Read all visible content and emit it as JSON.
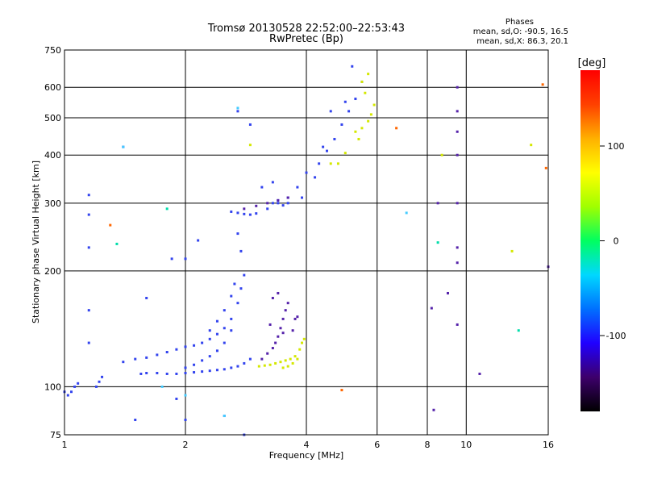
{
  "chart_data": {
    "type": "scatter",
    "title": "Tromsø 20130528 22:52:00–22:53:43",
    "subtitle": "RwPretec (Bp)",
    "xlabel": "Frequency [MHz]",
    "ylabel": "Stationary phase Virtual Height [km]",
    "x_scale": "log",
    "y_scale": "log",
    "xlim": [
      1,
      16
    ],
    "ylim": [
      75,
      750
    ],
    "x_ticks": [
      1,
      2,
      4,
      6,
      8,
      10,
      16
    ],
    "y_ticks": [
      75,
      100,
      200,
      300,
      400,
      500,
      600,
      750
    ],
    "grid": true,
    "phase_stats": {
      "header": "Phases",
      "line_o": "mean, sd,O: -90.5, 16.5",
      "line_x": "mean, sd,X: 86.3, 20.1"
    },
    "colorbar": {
      "label": "[deg]",
      "range": [
        -180,
        180
      ],
      "ticks": [
        100,
        0,
        -100
      ],
      "colors": [
        "#000000",
        "#3d006b",
        "#2000ff",
        "#0070ff",
        "#00d8ff",
        "#00ff60",
        "#a0ff00",
        "#ffff00",
        "#ffb000",
        "#ff4000",
        "#ff0000"
      ]
    },
    "series": [
      {
        "color": "#3344ee",
        "points": [
          [
            1.0,
            97
          ],
          [
            1.02,
            95
          ],
          [
            1.04,
            97
          ],
          [
            1.06,
            100
          ],
          [
            1.08,
            102
          ],
          [
            1.2,
            100
          ],
          [
            1.22,
            103
          ],
          [
            1.24,
            106
          ],
          [
            1.55,
            108
          ],
          [
            1.6,
            108.5
          ],
          [
            1.7,
            108.5
          ],
          [
            1.8,
            108
          ],
          [
            1.9,
            108
          ],
          [
            2.0,
            108.5
          ],
          [
            2.1,
            109
          ],
          [
            2.2,
            109.5
          ],
          [
            2.3,
            110
          ],
          [
            2.4,
            110.5
          ],
          [
            2.5,
            111
          ],
          [
            2.6,
            112
          ],
          [
            2.7,
            113
          ],
          [
            2.8,
            115
          ],
          [
            2.9,
            118
          ],
          [
            1.4,
            116
          ],
          [
            1.5,
            118
          ],
          [
            1.6,
            119
          ],
          [
            1.7,
            121
          ],
          [
            1.8,
            123
          ],
          [
            1.9,
            125
          ],
          [
            2.0,
            127
          ],
          [
            2.1,
            128
          ],
          [
            2.2,
            130
          ],
          [
            2.3,
            133
          ],
          [
            2.4,
            137
          ],
          [
            2.5,
            142
          ],
          [
            2.6,
            150
          ],
          [
            2.7,
            165
          ],
          [
            2.75,
            180
          ],
          [
            2.8,
            195
          ],
          [
            2.3,
            140
          ],
          [
            2.4,
            148
          ],
          [
            2.5,
            158
          ],
          [
            2.6,
            172
          ],
          [
            2.65,
            185
          ],
          [
            2.0,
            112
          ],
          [
            2.1,
            114
          ],
          [
            2.2,
            117
          ],
          [
            2.3,
            120
          ],
          [
            2.4,
            124
          ],
          [
            2.5,
            130
          ],
          [
            2.6,
            140
          ],
          [
            2.7,
            250
          ],
          [
            2.75,
            225
          ],
          [
            1.85,
            215
          ],
          [
            2.0,
            215
          ],
          [
            2.15,
            240
          ],
          [
            3.1,
            330
          ],
          [
            3.3,
            340
          ],
          [
            2.9,
            480
          ],
          [
            2.7,
            520
          ],
          [
            1.4,
            420
          ],
          [
            1.6,
            170
          ],
          [
            1.15,
            315
          ],
          [
            1.15,
            280
          ],
          [
            1.15,
            230
          ],
          [
            1.15,
            158
          ],
          [
            1.15,
            130
          ],
          [
            1.5,
            82
          ],
          [
            1.9,
            93
          ],
          [
            2.8,
            75
          ],
          [
            2.0,
            82
          ],
          [
            2.5,
            84
          ],
          [
            2.6,
            285
          ],
          [
            2.7,
            283
          ],
          [
            2.8,
            281
          ],
          [
            2.9,
            280
          ],
          [
            3.0,
            282
          ],
          [
            3.2,
            290
          ],
          [
            3.4,
            300
          ],
          [
            3.6,
            310
          ],
          [
            3.8,
            330
          ],
          [
            4.0,
            360
          ],
          [
            4.3,
            380
          ],
          [
            4.5,
            410
          ],
          [
            4.7,
            440
          ],
          [
            4.9,
            480
          ],
          [
            5.1,
            520
          ],
          [
            5.3,
            560
          ],
          [
            5.5,
            620
          ],
          [
            5.2,
            680
          ],
          [
            5.0,
            550
          ],
          [
            4.6,
            520
          ],
          [
            4.4,
            420
          ],
          [
            4.2,
            350
          ],
          [
            3.9,
            310
          ],
          [
            3.3,
            300
          ],
          [
            3.4,
            305
          ],
          [
            3.6,
            300
          ],
          [
            3.5,
            296
          ]
        ]
      },
      {
        "color": "#5522aa",
        "points": [
          [
            3.1,
            118
          ],
          [
            3.2,
            122
          ],
          [
            3.3,
            126
          ],
          [
            3.35,
            130
          ],
          [
            3.4,
            135
          ],
          [
            3.45,
            142
          ],
          [
            3.5,
            150
          ],
          [
            3.55,
            158
          ],
          [
            3.6,
            165
          ],
          [
            3.25,
            145
          ],
          [
            3.5,
            138
          ],
          [
            3.7,
            140
          ],
          [
            3.75,
            150
          ],
          [
            3.8,
            152
          ],
          [
            3.3,
            170
          ],
          [
            3.4,
            175
          ],
          [
            2.8,
            290
          ],
          [
            3.0,
            295
          ],
          [
            3.2,
            300
          ],
          [
            3.4,
            305
          ],
          [
            3.6,
            310
          ],
          [
            9.5,
            600
          ],
          [
            9.5,
            520
          ],
          [
            9.5,
            460
          ],
          [
            9.5,
            400
          ],
          [
            9.5,
            300
          ],
          [
            9.5,
            230
          ],
          [
            9.5,
            210
          ],
          [
            9.5,
            145
          ],
          [
            8.5,
            300
          ],
          [
            8.2,
            160
          ],
          [
            8.3,
            87
          ],
          [
            9.0,
            175
          ],
          [
            10.8,
            108
          ],
          [
            16.0,
            205
          ]
        ]
      },
      {
        "color": "#d4e800",
        "points": [
          [
            3.05,
            113
          ],
          [
            3.15,
            113.5
          ],
          [
            3.25,
            114
          ],
          [
            3.35,
            115
          ],
          [
            3.45,
            116
          ],
          [
            3.55,
            117
          ],
          [
            3.65,
            118
          ],
          [
            3.75,
            120
          ],
          [
            3.85,
            125
          ],
          [
            3.9,
            130
          ],
          [
            3.95,
            133
          ],
          [
            3.5,
            112
          ],
          [
            3.6,
            113
          ],
          [
            3.7,
            115
          ],
          [
            3.8,
            118
          ],
          [
            5.3,
            460
          ],
          [
            5.5,
            470
          ],
          [
            5.7,
            490
          ],
          [
            5.8,
            510
          ],
          [
            5.9,
            540
          ],
          [
            5.6,
            580
          ],
          [
            5.5,
            620
          ],
          [
            5.7,
            650
          ],
          [
            5.4,
            440
          ],
          [
            4.6,
            380
          ],
          [
            4.8,
            380
          ],
          [
            5.0,
            405
          ],
          [
            2.9,
            425
          ],
          [
            8.7,
            400
          ],
          [
            13.0,
            225
          ],
          [
            14.5,
            425
          ]
        ]
      },
      {
        "color": "#44ccff",
        "points": [
          [
            2.7,
            530
          ],
          [
            1.75,
            100
          ],
          [
            2.0,
            95
          ],
          [
            7.1,
            283
          ],
          [
            2.5,
            84
          ],
          [
            1.4,
            420
          ]
        ]
      },
      {
        "color": "#ff6600",
        "points": [
          [
            4.9,
            98
          ],
          [
            15.5,
            610
          ],
          [
            15.8,
            370
          ],
          [
            6.7,
            470
          ],
          [
            1.3,
            263
          ]
        ]
      },
      {
        "color": "#00ddaa",
        "points": [
          [
            8.5,
            237
          ],
          [
            1.35,
            235
          ],
          [
            13.5,
            140
          ],
          [
            1.8,
            290
          ]
        ]
      }
    ]
  }
}
